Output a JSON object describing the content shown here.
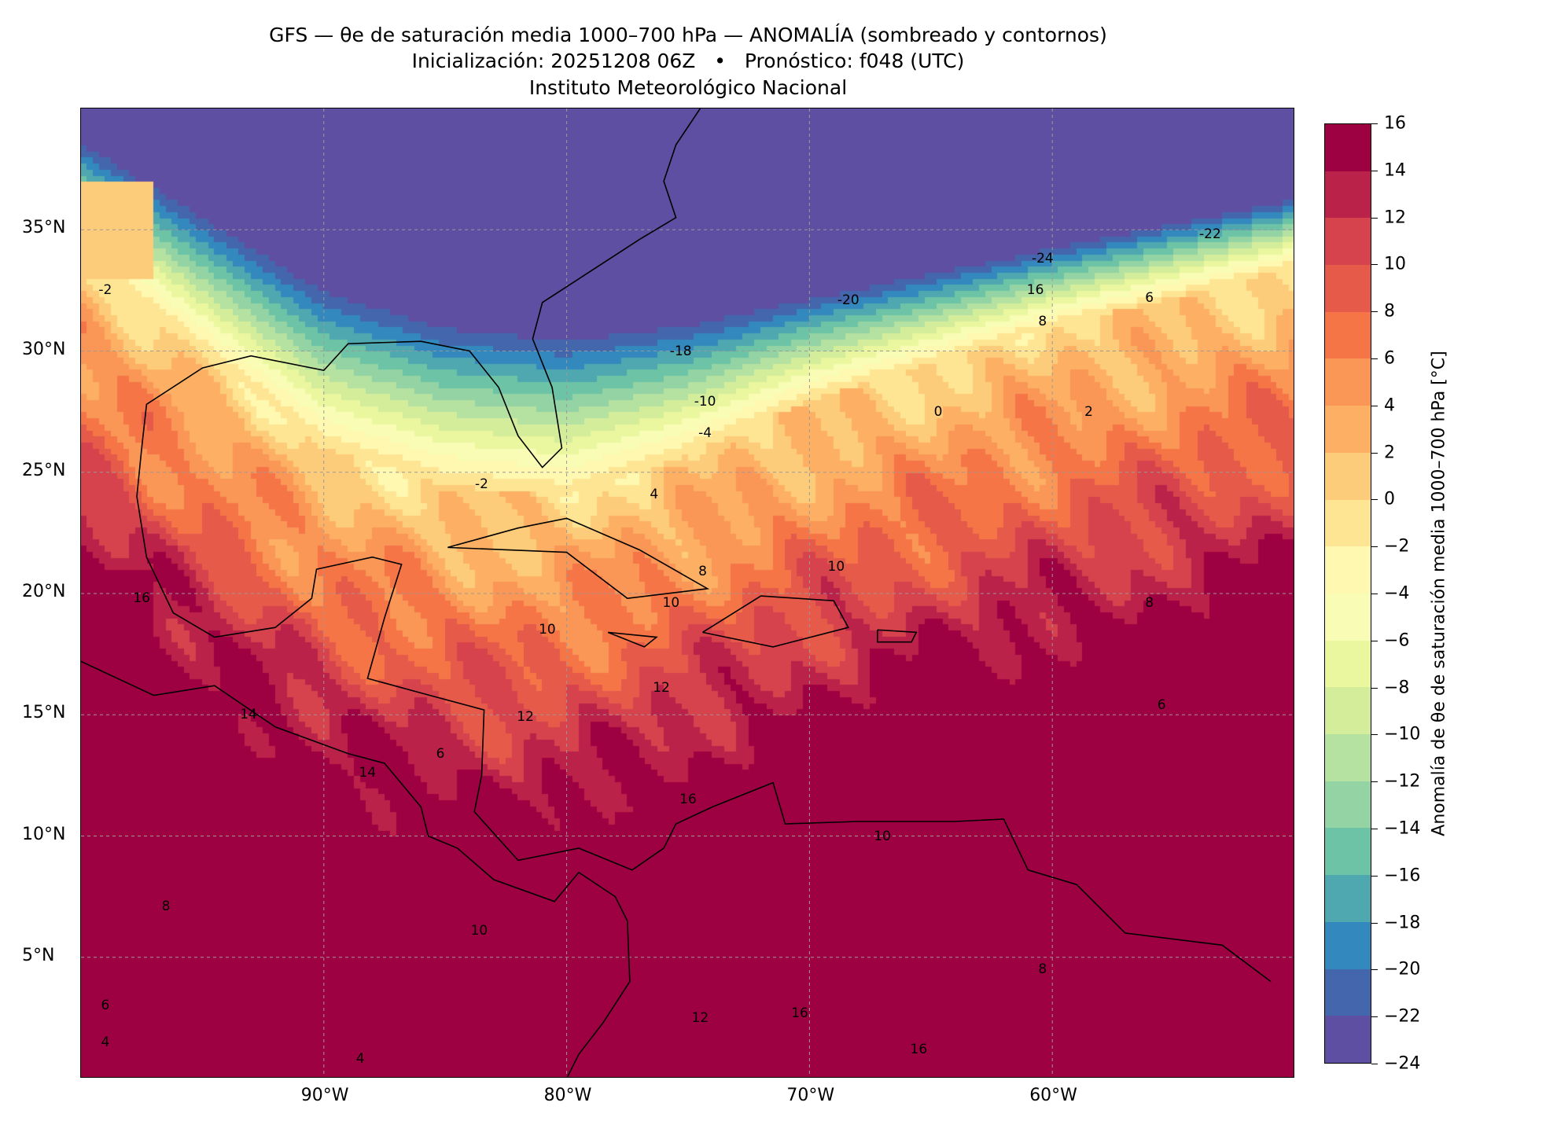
{
  "title": {
    "line1": "GFS — θe de saturación media 1000–700 hPa — ANOMALÍA (sombreado y contornos)",
    "line2": "Inicialización: 20251208 06Z   •   Pronóstico: f048 (UTC)",
    "line3": "Instituto Meteorológico Nacional"
  },
  "map": {
    "extent": {
      "lon_min": -100,
      "lon_max": -50,
      "lat_min": 0,
      "lat_max": 40
    },
    "lon_ticks": [
      {
        "value": -90,
        "label": "90°W"
      },
      {
        "value": -80,
        "label": "80°W"
      },
      {
        "value": -70,
        "label": "70°W"
      },
      {
        "value": -60,
        "label": "60°W"
      }
    ],
    "lat_ticks": [
      {
        "value": 35,
        "label": "35°N"
      },
      {
        "value": 30,
        "label": "30°N"
      },
      {
        "value": 25,
        "label": "25°N"
      },
      {
        "value": 20,
        "label": "20°N"
      },
      {
        "value": 15,
        "label": "15°N"
      },
      {
        "value": 10,
        "label": "10°N"
      },
      {
        "value": 5,
        "label": "5°N"
      }
    ],
    "contour_labels": [
      {
        "lon": -60.4,
        "lat": 33.8,
        "text": "-24"
      },
      {
        "lon": -53.5,
        "lat": 34.8,
        "text": "-22"
      },
      {
        "lon": -60.7,
        "lat": 32.5,
        "text": "16"
      },
      {
        "lon": -68.4,
        "lat": 32.1,
        "text": "-20"
      },
      {
        "lon": -56,
        "lat": 32.2,
        "text": "6"
      },
      {
        "lon": -60.4,
        "lat": 31.2,
        "text": "8"
      },
      {
        "lon": -75.3,
        "lat": 30.0,
        "text": "-18"
      },
      {
        "lon": -74.3,
        "lat": 27.9,
        "text": "-10"
      },
      {
        "lon": -74.3,
        "lat": 26.6,
        "text": "-4"
      },
      {
        "lon": -83.5,
        "lat": 24.5,
        "text": "-2"
      },
      {
        "lon": -64.7,
        "lat": 27.5,
        "text": "0"
      },
      {
        "lon": -58.5,
        "lat": 27.5,
        "text": "2"
      },
      {
        "lon": -76.4,
        "lat": 24.1,
        "text": "4"
      },
      {
        "lon": -74.4,
        "lat": 20.9,
        "text": "8"
      },
      {
        "lon": -68.9,
        "lat": 21.1,
        "text": "10"
      },
      {
        "lon": -80.8,
        "lat": 18.5,
        "text": "10"
      },
      {
        "lon": -75.7,
        "lat": 19.6,
        "text": "10"
      },
      {
        "lon": -76.1,
        "lat": 16.1,
        "text": "12"
      },
      {
        "lon": -81.7,
        "lat": 14.9,
        "text": "12"
      },
      {
        "lon": -93.1,
        "lat": 15.0,
        "text": "14"
      },
      {
        "lon": -88.2,
        "lat": 12.6,
        "text": "14"
      },
      {
        "lon": -85.2,
        "lat": 13.4,
        "text": "6"
      },
      {
        "lon": -75.0,
        "lat": 11.5,
        "text": "16"
      },
      {
        "lon": -67.0,
        "lat": 10.0,
        "text": "10"
      },
      {
        "lon": -96.5,
        "lat": 7.1,
        "text": "8"
      },
      {
        "lon": -83.6,
        "lat": 6.1,
        "text": "10"
      },
      {
        "lon": -99,
        "lat": 3.0,
        "text": "6"
      },
      {
        "lon": -99,
        "lat": 1.5,
        "text": "4"
      },
      {
        "lon": -88.5,
        "lat": 0.8,
        "text": "4"
      },
      {
        "lon": -70.4,
        "lat": 2.7,
        "text": "16"
      },
      {
        "lon": -65.5,
        "lat": 1.2,
        "text": "16"
      },
      {
        "lon": -74.5,
        "lat": 2.5,
        "text": "12"
      },
      {
        "lon": -56,
        "lat": 19.6,
        "text": "8"
      },
      {
        "lon": -55.5,
        "lat": 15.4,
        "text": "6"
      },
      {
        "lon": -60.4,
        "lat": 4.5,
        "text": "8"
      },
      {
        "lon": -99,
        "lat": 32.5,
        "text": "-2"
      },
      {
        "lon": -97.5,
        "lat": 19.8,
        "text": "16"
      }
    ]
  },
  "colorbar": {
    "label": "Anomalía de θe de saturación media 1000–700 hPa [°C]",
    "levels": [
      -24,
      -22,
      -20,
      -18,
      -16,
      -14,
      -12,
      -10,
      -8,
      -6,
      -4,
      -2,
      0,
      2,
      4,
      6,
      8,
      10,
      12,
      14,
      16
    ],
    "tick_labels": [
      "−24",
      "−22",
      "−20",
      "−18",
      "−16",
      "−14",
      "−12",
      "−10",
      "−8",
      "−6",
      "−4",
      "−2",
      "0",
      "2",
      "4",
      "6",
      "8",
      "10",
      "12",
      "14",
      "16"
    ],
    "colors": [
      "#5e4fa2",
      "#4466ad",
      "#3389bd",
      "#4fa7b0",
      "#6cc3a5",
      "#93d3a4",
      "#b5e1a1",
      "#d4ed9b",
      "#eaf79f",
      "#f8fcb4",
      "#fef8b0",
      "#fee593",
      "#fdcc7a",
      "#fdb063",
      "#fa9757",
      "#f57547",
      "#e65a4a",
      "#d6434c",
      "#bb2249",
      "#9e0142"
    ]
  }
}
